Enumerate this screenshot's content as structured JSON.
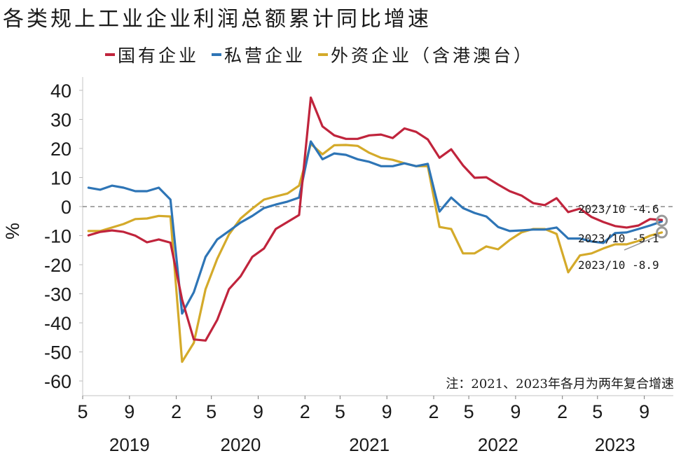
{
  "chart_data": {
    "type": "line",
    "title": "各类规上工业企业利润总额累计同比增速",
    "xlabel": "",
    "ylabel": "%",
    "ylim": [
      -60,
      40
    ],
    "yticks": [
      "40",
      "30",
      "20",
      "10",
      "0",
      "-10",
      "-20",
      "-30",
      "-40",
      "-50",
      "-60"
    ],
    "ytick_values": [
      40,
      30,
      20,
      10,
      0,
      -10,
      -20,
      -30,
      -40,
      -50,
      -60
    ],
    "legend_position": "top",
    "grid": false,
    "zero_line": "dashed",
    "x_month_ticks": [
      {
        "label": "5",
        "index": 0
      },
      {
        "label": "9",
        "index": 4
      },
      {
        "label": "2",
        "index": 8
      },
      {
        "label": "5",
        "index": 11
      },
      {
        "label": "9",
        "index": 15
      },
      {
        "label": "2",
        "index": 19
      },
      {
        "label": "5",
        "index": 22
      },
      {
        "label": "9",
        "index": 26
      },
      {
        "label": "2",
        "index": 30
      },
      {
        "label": "5",
        "index": 33
      },
      {
        "label": "9",
        "index": 37
      },
      {
        "label": "2",
        "index": 41
      },
      {
        "label": "5",
        "index": 44
      },
      {
        "label": "9",
        "index": 48
      }
    ],
    "x_year_labels": [
      {
        "label": "2019",
        "center_index": 4
      },
      {
        "label": "2020",
        "center_index": 13.5
      },
      {
        "label": "2021",
        "center_index": 24.5
      },
      {
        "label": "2022",
        "center_index": 35.5
      },
      {
        "label": "2023",
        "center_index": 45.5
      }
    ],
    "x": [
      "2019-05",
      "2019-06",
      "2019-07",
      "2019-08",
      "2019-09",
      "2019-10",
      "2019-11",
      "2019-12",
      "2020-02",
      "2020-03",
      "2020-04",
      "2020-05",
      "2020-06",
      "2020-07",
      "2020-08",
      "2020-09",
      "2020-10",
      "2020-11",
      "2020-12",
      "2021-02",
      "2021-03",
      "2021-04",
      "2021-05",
      "2021-06",
      "2021-07",
      "2021-08",
      "2021-09",
      "2021-10",
      "2021-11",
      "2021-12",
      "2022-02",
      "2022-03",
      "2022-04",
      "2022-05",
      "2022-06",
      "2022-07",
      "2022-08",
      "2022-09",
      "2022-10",
      "2022-11",
      "2022-12",
      "2023-02",
      "2023-03",
      "2023-04",
      "2023-05",
      "2023-06",
      "2023-07",
      "2023-08",
      "2023-09",
      "2023-10"
    ],
    "series": [
      {
        "name": "国有企业",
        "color": "#c0243c",
        "values": [
          -9.9,
          -8.7,
          -8.2,
          -8.7,
          -10.0,
          -12.3,
          -11.3,
          -12.4,
          -32.0,
          -45.7,
          -46.1,
          -39.0,
          -28.4,
          -24.0,
          -17.3,
          -14.4,
          -7.7,
          -5.3,
          -2.9,
          37.5,
          27.6,
          24.5,
          23.3,
          23.3,
          24.5,
          24.8,
          23.6,
          26.9,
          25.7,
          23.1,
          16.8,
          19.7,
          14.2,
          9.9,
          10.1,
          7.6,
          5.3,
          3.8,
          1.2,
          0.5,
          2.9,
          -1.9,
          -0.7,
          -3.6,
          -5.3,
          -6.7,
          -7.2,
          -6.5,
          -4.3,
          -4.6
        ]
      },
      {
        "name": "私营企业",
        "color": "#2e75b6",
        "values": [
          6.5,
          5.8,
          7.2,
          6.5,
          5.3,
          5.3,
          6.5,
          2.4,
          -36.8,
          -29.5,
          -17.3,
          -11.3,
          -8.4,
          -5.5,
          -3.2,
          -0.5,
          0.7,
          1.7,
          3.1,
          22.4,
          16.3,
          18.3,
          17.8,
          16.3,
          15.4,
          13.9,
          13.9,
          14.9,
          13.9,
          14.7,
          -1.7,
          3.1,
          -0.5,
          -2.2,
          -3.4,
          -7.0,
          -8.4,
          -8.2,
          -7.9,
          -7.9,
          -7.2,
          -11.0,
          -11.0,
          -12.0,
          -12.5,
          -9.1,
          -8.9,
          -7.7,
          -6.5,
          -5.1
        ]
      },
      {
        "name": "外资企业（含港澳台）",
        "color": "#d4aa2a",
        "values": [
          -8.4,
          -8.4,
          -7.2,
          -6.0,
          -4.3,
          -4.1,
          -3.2,
          -3.4,
          -53.4,
          -46.9,
          -28.4,
          -18.0,
          -9.6,
          -4.1,
          -0.7,
          2.4,
          3.5,
          4.5,
          7.2,
          21.6,
          18.0,
          21.1,
          21.2,
          20.9,
          18.5,
          16.8,
          16.1,
          14.9,
          13.9,
          13.9,
          -7.0,
          -7.7,
          -16.1,
          -16.1,
          -13.7,
          -14.7,
          -11.5,
          -8.9,
          -7.7,
          -7.7,
          -9.4,
          -22.6,
          -16.8,
          -16.1,
          -14.4,
          -13.0,
          -13.0,
          -11.8,
          -10.0,
          -8.9
        ]
      }
    ],
    "annotations": [
      {
        "text": "2023/10 -4.6",
        "series": "国有企业",
        "value": -4.6
      },
      {
        "text": "2023/10 -5.1",
        "series": "私营企业",
        "value": -5.1
      },
      {
        "text": "2023/10 -8.9",
        "series": "外资企业（含港澳台）",
        "value": -8.9
      }
    ],
    "note": "注：2021、2023年各月为两年复合增速"
  },
  "legend": {
    "items": [
      {
        "label": "国有企业",
        "color": "#c0243c"
      },
      {
        "label": "私营企业",
        "color": "#2e75b6"
      },
      {
        "label": "外资企业（含港澳台）",
        "color": "#d4aa2a"
      }
    ]
  }
}
